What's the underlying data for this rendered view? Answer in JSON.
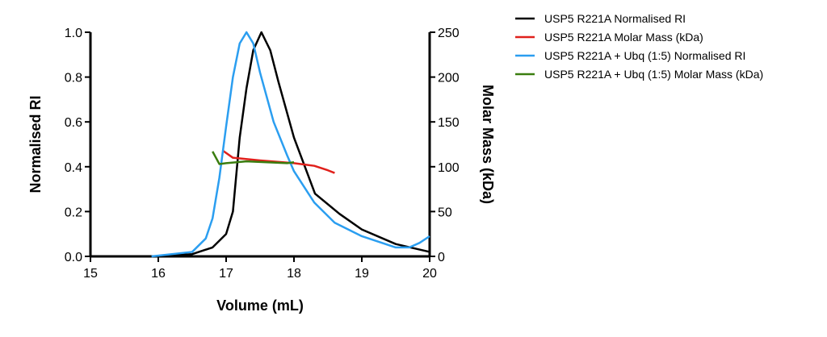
{
  "chart_data": {
    "type": "line",
    "xlabel": "Volume (mL)",
    "ylabel": "Normalised RI",
    "y2label": "Molar Mass (kDa)",
    "xlim": [
      15,
      20
    ],
    "xticks": [
      15,
      16,
      17,
      18,
      19,
      20
    ],
    "ylim": [
      0,
      1
    ],
    "yticks": [
      {
        "value": 0,
        "label": "0.0"
      },
      {
        "value": 0.2,
        "label": "0.2"
      },
      {
        "value": 0.4,
        "label": "0.4"
      },
      {
        "value": 0.6,
        "label": "0.6"
      },
      {
        "value": 0.8,
        "label": "0.8"
      },
      {
        "value": 1,
        "label": "1.0"
      }
    ],
    "y2lim": [
      0,
      250
    ],
    "y2ticks": [
      0,
      50,
      100,
      150,
      200,
      250
    ],
    "series": [
      {
        "name": "USP5 R221A Normalised RI",
        "color": "#000000",
        "x": [
          15.9,
          16.5,
          16.8,
          17.0,
          17.1,
          17.2,
          17.3,
          17.4,
          17.52,
          17.65,
          17.77,
          18.0,
          18.31,
          18.67,
          19.0,
          19.5,
          20.0
        ],
        "values": [
          0,
          0.01,
          0.04,
          0.1,
          0.2,
          0.53,
          0.75,
          0.92,
          1.0,
          0.92,
          0.78,
          0.53,
          0.28,
          0.19,
          0.12,
          0.055,
          0.02
        ]
      },
      {
        "name": "USP5 R221A Molar Mass (kDa)",
        "color": "#e0201b",
        "axis": "y2",
        "x": [
          16.95,
          17.1,
          17.5,
          18.0,
          18.3,
          18.5,
          18.6
        ],
        "values": [
          118,
          110,
          107,
          104,
          101,
          96,
          93
        ]
      },
      {
        "name": "USP5 R221A + Ubq (1:5) Normalised RI",
        "color": "#2b9ef0",
        "x": [
          15.9,
          16.5,
          16.7,
          16.8,
          16.9,
          17.0,
          17.1,
          17.2,
          17.3,
          17.4,
          17.5,
          17.7,
          17.9,
          18.0,
          18.3,
          18.6,
          19.0,
          19.5,
          19.7,
          19.85,
          20.0
        ],
        "values": [
          0,
          0.02,
          0.08,
          0.17,
          0.35,
          0.58,
          0.8,
          0.95,
          1.0,
          0.95,
          0.82,
          0.6,
          0.45,
          0.38,
          0.24,
          0.15,
          0.09,
          0.04,
          0.04,
          0.06,
          0.09
        ]
      },
      {
        "name": "USP5 R221A + Ubq (1:5) Molar Mass (kDa)",
        "color": "#3a7d0f",
        "axis": "y2",
        "x": [
          16.8,
          16.9,
          17.0,
          17.3,
          17.6,
          17.9,
          18.0
        ],
        "values": [
          117,
          103,
          104,
          106,
          105,
          104,
          105
        ]
      }
    ]
  }
}
